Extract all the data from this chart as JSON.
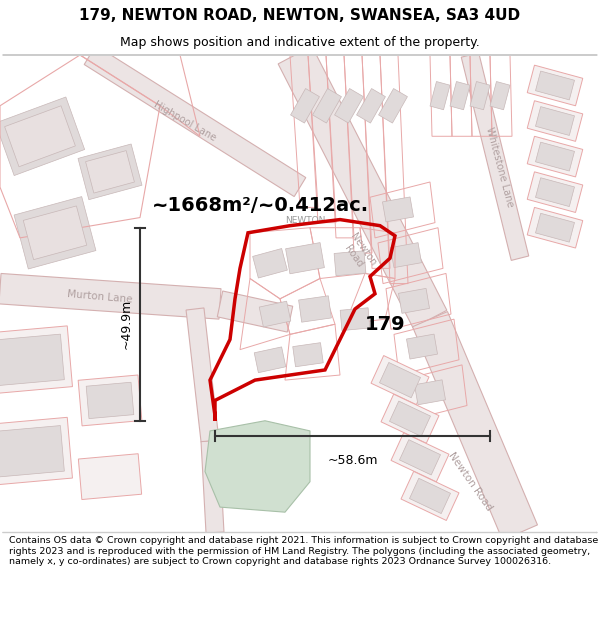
{
  "title": "179, NEWTON ROAD, NEWTON, SWANSEA, SA3 4UD",
  "subtitle": "Map shows position and indicative extent of the property.",
  "footer": "Contains OS data © Crown copyright and database right 2021. This information is subject to Crown copyright and database rights 2023 and is reproduced with the permission of HM Land Registry. The polygons (including the associated geometry, namely x, y co-ordinates) are subject to Crown copyright and database rights 2023 Ordnance Survey 100026316.",
  "area_label": "~1668m²/~0.412ac.",
  "property_number": "179",
  "dim_width": "~58.6m",
  "dim_height": "~49.9m",
  "map_bg": "#f5f0f0",
  "parcel_edge": "#e8a8a8",
  "parcel_fill": "#f5f0f0",
  "building_fill": "#e0dada",
  "building_edge": "#c8b8b8",
  "road_fill": "#f0e8e8",
  "road_edge": "#d0b0b0",
  "property_outline_color": "#cc0000",
  "green_area_color": "#d0e0d0",
  "green_area_edge": "#a8c0a8",
  "road_label_color": "#b0a0a0",
  "dim_line_color": "#333333",
  "title_fontsize": 11,
  "subtitle_fontsize": 9,
  "footer_fontsize": 6.8,
  "area_fontsize": 14,
  "num_fontsize": 14,
  "dim_fontsize": 9
}
